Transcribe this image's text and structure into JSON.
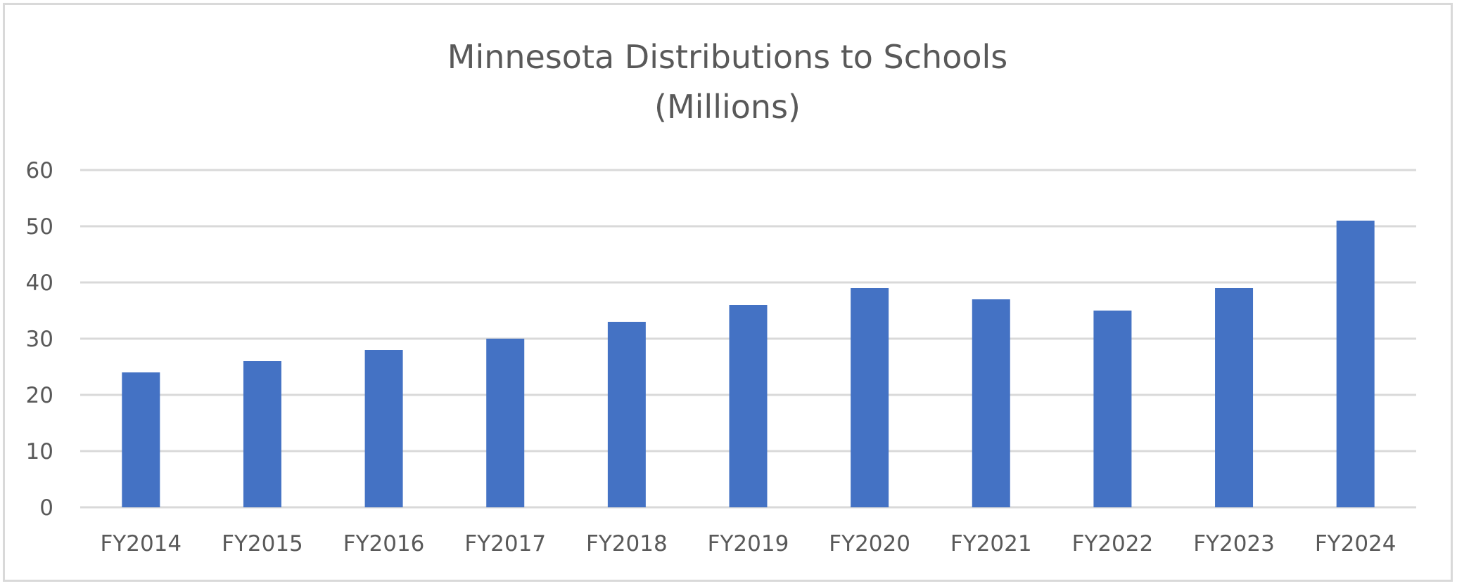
{
  "chart_data": {
    "type": "bar",
    "title": "Minnesota Distributions to Schools",
    "subtitle": "(Millions)",
    "xlabel": "",
    "ylabel": "",
    "categories": [
      "FY2014",
      "FY2015",
      "FY2016",
      "FY2017",
      "FY2018",
      "FY2019",
      "FY2020",
      "FY2021",
      "FY2022",
      "FY2023",
      "FY2024"
    ],
    "values": [
      24,
      26,
      28,
      30,
      33,
      36,
      39,
      37,
      35,
      39,
      51
    ],
    "ylim": [
      0,
      60
    ],
    "yticks": [
      "0",
      "10",
      "20",
      "30",
      "40",
      "50",
      "60"
    ],
    "grid": true,
    "legend": "none",
    "bar_color": "#4472c4",
    "grid_color": "#d9d9d9",
    "text_color": "#595959"
  }
}
